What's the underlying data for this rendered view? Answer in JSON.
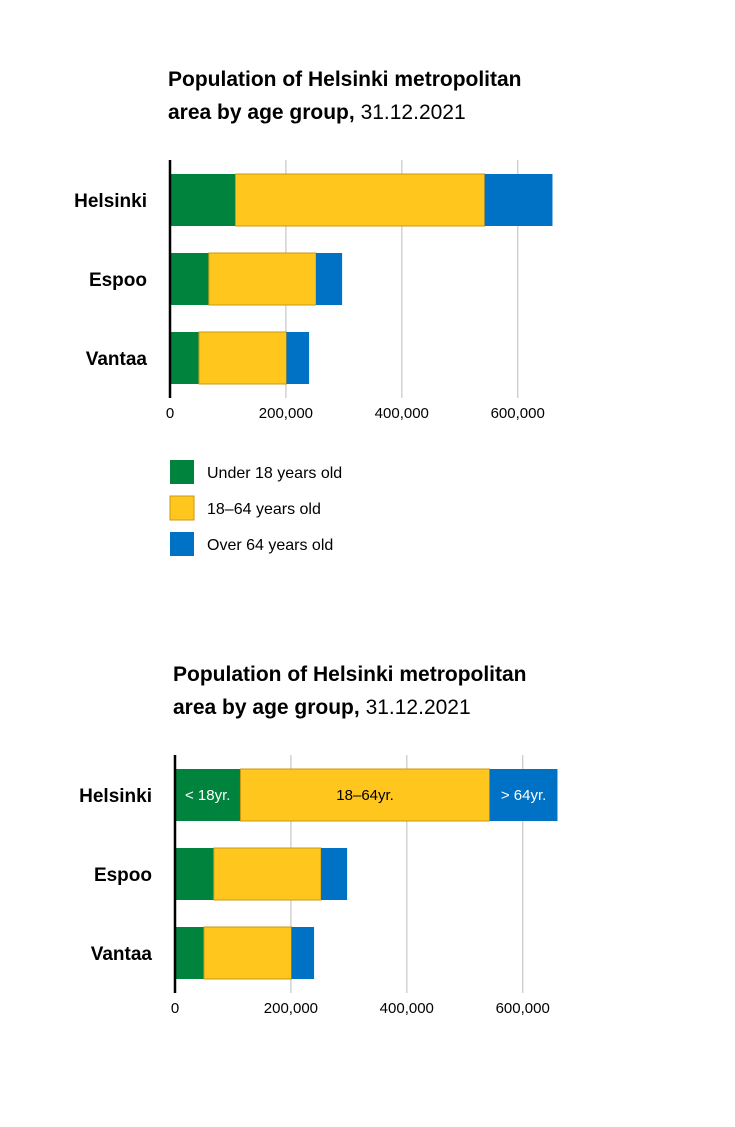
{
  "colors": {
    "under18": "#00843D",
    "age18_64": "#FFC61E",
    "over64": "#0072C6",
    "grid": "#cccccc",
    "axis": "#000000",
    "edge": "#C99A12"
  },
  "chart_data": [
    {
      "type": "bar",
      "orientation": "horizontal",
      "stacked": true,
      "title": "Population of Helsinki metropolitan area by age group,",
      "title_line1": "Population of Helsinki metropolitan",
      "title_line2": "area by age group,",
      "date": "31.12.2021",
      "categories": [
        "Helsinki",
        "Espoo",
        "Vantaa"
      ],
      "series": [
        {
          "name": "Under 18 years old",
          "values": [
            113000,
            67000,
            50000
          ]
        },
        {
          "name": "18–64 years old",
          "values": [
            430000,
            185000,
            151000
          ]
        },
        {
          "name": "Over 64 years old",
          "values": [
            117000,
            45000,
            39000
          ]
        }
      ],
      "xticks": [
        0,
        200000,
        400000,
        600000
      ],
      "xtick_labels": [
        "0",
        "200,000",
        "400,000",
        "600,000"
      ],
      "xlim": [
        0,
        680000
      ],
      "grid": true,
      "legend": {
        "placement": "bottom-left",
        "entries": [
          "Under 18 years old",
          "18–64 years old",
          "Over 64 years old"
        ]
      },
      "xlabel": "",
      "ylabel": ""
    },
    {
      "type": "bar",
      "orientation": "horizontal",
      "stacked": true,
      "title": "Population of Helsinki metropolitan area by age group,",
      "title_line1": "Population of Helsinki metropolitan",
      "title_line2": "area by age group,",
      "date": "31.12.2021",
      "categories": [
        "Helsinki",
        "Espoo",
        "Vantaa"
      ],
      "series": [
        {
          "name": "< 18yr.",
          "values": [
            113000,
            67000,
            50000
          ]
        },
        {
          "name": "18–64yr.",
          "values": [
            430000,
            185000,
            151000
          ]
        },
        {
          "name": "> 64yr.",
          "values": [
            117000,
            45000,
            39000
          ]
        }
      ],
      "inline_labels": [
        "< 18yr.",
        "18–64yr.",
        "> 64yr."
      ],
      "xticks": [
        0,
        200000,
        400000,
        600000
      ],
      "xtick_labels": [
        "0",
        "200,000",
        "400,000",
        "600,000"
      ],
      "xlim": [
        0,
        680000
      ],
      "grid": true,
      "xlabel": "",
      "ylabel": ""
    }
  ]
}
